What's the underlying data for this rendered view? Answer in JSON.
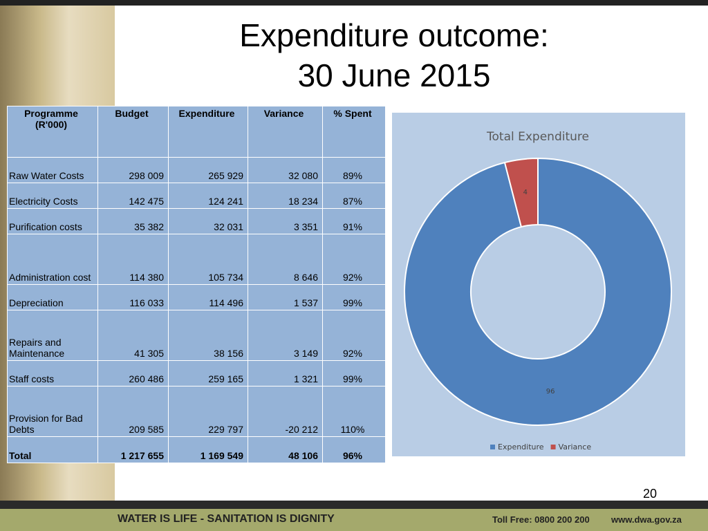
{
  "title": [
    "Expenditure outcome:",
    "30 June 2015"
  ],
  "table": {
    "header": [
      "Programme (R'000)",
      "Budget",
      "Expenditure",
      "Variance",
      "% Spent"
    ],
    "rows": [
      [
        "Raw Water Costs",
        "298 009",
        "265 929",
        "32 080",
        "89%"
      ],
      [
        "Electricity Costs",
        "142 475",
        "124 241",
        "18 234",
        "87%"
      ],
      [
        "Purification costs",
        "35 382",
        "32 031",
        "3 351",
        "91%"
      ],
      [
        "Administration cost",
        "114 380",
        "105 734",
        "8 646",
        "92%"
      ],
      [
        "Depreciation",
        "116 033",
        "114 496",
        "1 537",
        "99%"
      ],
      [
        "Repairs and Maintenance",
        "41 305",
        "38 156",
        "3 149",
        "92%"
      ],
      [
        "Staff costs",
        "260 486",
        "259 165",
        "1 321",
        "99%"
      ],
      [
        "Provision for Bad Debts",
        "209 585",
        "229 797",
        "-20 212",
        "110%"
      ],
      [
        "Total",
        "1 217 655",
        "1 169 549",
        "48 106",
        "96%"
      ]
    ]
  },
  "chart_data": {
    "type": "donut",
    "title": "Total Expenditure",
    "series": [
      {
        "name": "Expenditure",
        "color": "#4f81bd",
        "values": [
          96
        ]
      },
      {
        "name": "Variance",
        "color": "#c0504d",
        "values": [
          4
        ]
      }
    ]
  },
  "page_number": "20",
  "footer": {
    "slogan": "WATER IS LIFE - SANITATION IS DIGNITY",
    "toll_free": "Toll Free: 0800 200 200",
    "website": "www.dwa.gov.za"
  }
}
